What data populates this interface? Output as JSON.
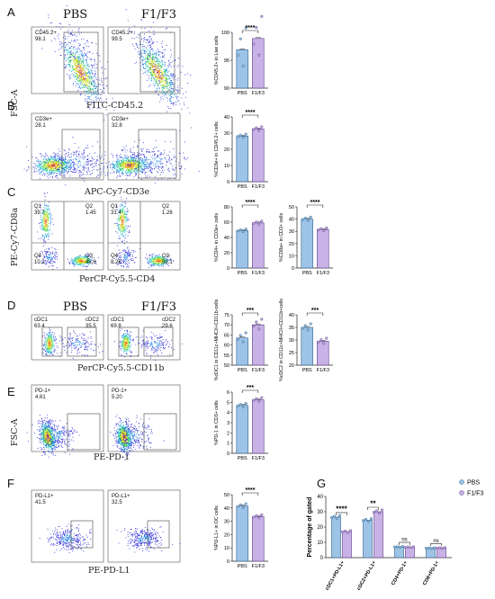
{
  "panels": {
    "A": {
      "letter": "A",
      "titles": [
        "PBS",
        "F1/F3"
      ],
      "xlabel": "FITC-CD45.2",
      "ylabel": "FSC-A",
      "gates": [
        {
          "label": "CD45.2+",
          "value": "98.1"
        },
        {
          "label": "CD45.2+",
          "value": "99.5"
        }
      ]
    },
    "B": {
      "letter": "B",
      "xlabel": "APC-Cy7-CD3e",
      "gates": [
        {
          "label": "CD3e+",
          "value": "28.1"
        },
        {
          "label": "CD3e+",
          "value": "32.8"
        }
      ]
    },
    "C": {
      "letter": "C",
      "xlabel": "PerCP-Cy5.5-CD4",
      "ylabel": "PE-Cy7-CD8a",
      "quadrants": [
        {
          "q1": "Q1",
          "q1v": "39.7",
          "q2": "Q2",
          "q2v": "1.45",
          "q4": "Q4",
          "q4v": "10.2",
          "q3": "Q3",
          "q3v": "48.6"
        },
        {
          "q1": "Q1",
          "q1v": "31.4",
          "q2": "Q2",
          "q2v": "1.26",
          "q4": "Q4",
          "q4v": "8.26",
          "q3": "Q3",
          "q3v": "59.1"
        }
      ]
    },
    "D": {
      "letter": "D",
      "titles": [
        "PBS",
        "F1/F3"
      ],
      "xlabel": "PerCP-Cy5.5-CD11b",
      "gates": [
        {
          "l": "cDC1",
          "lv": "63.4",
          "r": "cDC2",
          "rv": "35.5"
        },
        {
          "l": "cDC1",
          "lv": "69.8",
          "r": "cDC2",
          "rv": "29.6"
        }
      ]
    },
    "E": {
      "letter": "E",
      "xlabel": "PE-PD-1",
      "ylabel": "FSC-A",
      "gates": [
        {
          "label": "PD-1+",
          "value": "4.61"
        },
        {
          "label": "PD-1+",
          "value": "5.20"
        }
      ]
    },
    "F": {
      "letter": "F",
      "xlabel": "PE-PD-L1",
      "gates": [
        {
          "label": "PD-L1+",
          "value": "41.5"
        },
        {
          "label": "PD-L1+",
          "value": "32.5"
        }
      ]
    },
    "G": {
      "letter": "G"
    }
  },
  "colors": {
    "pbs": "#9dc3e6",
    "f1f3": "#c9b3e6",
    "pbs_edge": "#2e5f8a",
    "f1f3_edge": "#5b3a8a"
  },
  "chart_data": [
    {
      "id": "A",
      "type": "bar",
      "categories": [
        "PBS",
        "F1/F3"
      ],
      "values": [
        96.9,
        98.9
      ],
      "ylim": [
        90,
        100
      ],
      "yticks": [
        90,
        95,
        100
      ],
      "ylabel": "%CD45.2+ in Live cells",
      "significance": "****"
    },
    {
      "id": "B",
      "type": "bar",
      "categories": [
        "PBS",
        "F1/F3"
      ],
      "values": [
        28.2,
        32.6
      ],
      "ylim": [
        0,
        40
      ],
      "yticks": [
        0,
        10,
        20,
        30,
        40
      ],
      "ylabel": "%CD3e+ in CD45.2+ cells",
      "significance": "****"
    },
    {
      "id": "C1",
      "type": "bar",
      "categories": [
        "PBS",
        "F1/F3"
      ],
      "values": [
        49,
        59
      ],
      "ylim": [
        0,
        80
      ],
      "yticks": [
        0,
        20,
        40,
        60,
        80
      ],
      "ylabel": "%CD4+ in CD3e+ cells",
      "significance": "****"
    },
    {
      "id": "C2",
      "type": "bar",
      "categories": [
        "PBS",
        "F1/F3"
      ],
      "values": [
        40,
        31.5
      ],
      "ylim": [
        0,
        50
      ],
      "yticks": [
        0,
        10,
        20,
        30,
        40,
        50
      ],
      "ylabel": "%CD8a+ in CD3+ cells",
      "significance": "****"
    },
    {
      "id": "D1",
      "type": "bar",
      "categories": [
        "PBS",
        "F1/F3"
      ],
      "values": [
        63.5,
        70
      ],
      "ylim": [
        50,
        75
      ],
      "yticks": [
        50,
        55,
        60,
        65,
        70,
        75
      ],
      "ylabel": "%cDC1 in CD11c+MHCII+CD11b-cells",
      "significance": "***"
    },
    {
      "id": "D2",
      "type": "bar",
      "categories": [
        "PBS",
        "F1/F3"
      ],
      "values": [
        35,
        29.5
      ],
      "ylim": [
        20,
        40
      ],
      "yticks": [
        20,
        25,
        30,
        35,
        40
      ],
      "ylabel": "%cDC2 in CD11c+MHCII+CD11b+cells",
      "significance": "***"
    },
    {
      "id": "E",
      "type": "bar",
      "categories": [
        "PBS",
        "F1/F3"
      ],
      "values": [
        4.7,
        5.25
      ],
      "ylim": [
        0,
        6
      ],
      "yticks": [
        0,
        1,
        2,
        3,
        4,
        5,
        6
      ],
      "ylabel": "%PD-1 in CD3+ cells",
      "significance": "***"
    },
    {
      "id": "F",
      "type": "bar",
      "categories": [
        "PBS",
        "F1/F3"
      ],
      "values": [
        41.5,
        33.5
      ],
      "ylim": [
        0,
        50
      ],
      "yticks": [
        0,
        10,
        20,
        30,
        40,
        50
      ],
      "ylabel": "%PD-L1+ in DC cells",
      "significance": "****"
    },
    {
      "id": "G",
      "type": "bar",
      "categories": [
        "cDC1+PD-L1+",
        "cDC2+PD-L1+",
        "CD4+PD-1+",
        "CD8+PD-1+"
      ],
      "series": [
        {
          "name": "PBS",
          "values": [
            26.5,
            24.5,
            7,
            6.2
          ]
        },
        {
          "name": "F1/F3",
          "values": [
            17,
            30,
            6.8,
            6.3
          ]
        }
      ],
      "ylim": [
        0,
        40
      ],
      "yticks": [
        0,
        10,
        20,
        30,
        40
      ],
      "ylabel": "Percentage of gated",
      "significance": [
        "****",
        "**",
        "ns",
        "ns"
      ],
      "legend": "top-right"
    }
  ]
}
